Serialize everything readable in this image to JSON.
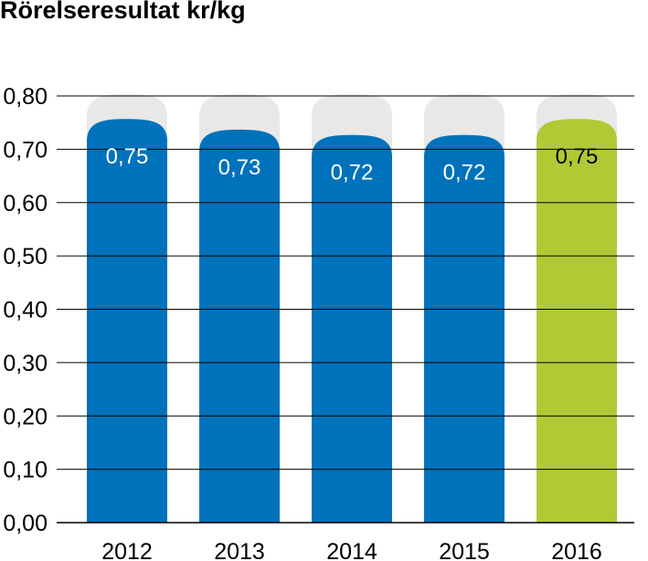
{
  "chart_data": {
    "type": "bar",
    "title": "Rörelseresultat kr/kg",
    "xlabel": "",
    "ylabel": "",
    "categories": [
      "2012",
      "2013",
      "2014",
      "2015",
      "2016"
    ],
    "values": [
      0.75,
      0.73,
      0.72,
      0.72,
      0.75
    ],
    "value_labels": [
      "0,75",
      "0,73",
      "0,72",
      "0,72",
      "0,75"
    ],
    "ylim": [
      0,
      0.8
    ],
    "yticks": [
      0.0,
      0.1,
      0.2,
      0.3,
      0.4,
      0.5,
      0.6,
      0.7,
      0.8
    ],
    "ytick_labels": [
      "0,00",
      "0,10",
      "0,20",
      "0,30",
      "0,40",
      "0,50",
      "0,60",
      "0,70",
      "0,80"
    ],
    "grid": true,
    "background_cap_color": "#e8e8e8",
    "bar_colors": [
      "#0072bb",
      "#0072bb",
      "#0072bb",
      "#0072bb",
      "#afca35"
    ],
    "label_colors": [
      "#ffffff",
      "#ffffff",
      "#ffffff",
      "#ffffff",
      "#000000"
    ],
    "highlight_category": "2016"
  }
}
